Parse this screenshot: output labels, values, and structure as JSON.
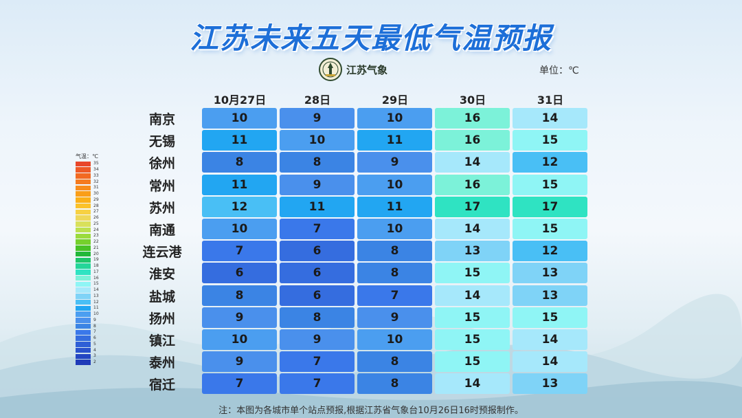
{
  "title": "江苏未来五天最低气温预报",
  "logo_text": "江苏气象",
  "unit_label": "单位：℃",
  "note": "注：本图为各城市单个站点预报,根据江苏省气象台10月26日16时预报制作。",
  "legend": {
    "title": "气温：℃",
    "levels": [
      {
        "label": "35",
        "color": "#e8472a"
      },
      {
        "label": "34",
        "color": "#ee5a26"
      },
      {
        "label": "33",
        "color": "#f26a22"
      },
      {
        "label": "32",
        "color": "#f57b1f"
      },
      {
        "label": "31",
        "color": "#f88d1c"
      },
      {
        "label": "30",
        "color": "#fa9e18"
      },
      {
        "label": "29",
        "color": "#fbb018"
      },
      {
        "label": "28",
        "color": "#fbc22a"
      },
      {
        "label": "27",
        "color": "#f7d143"
      },
      {
        "label": "26",
        "color": "#eed85a"
      },
      {
        "label": "25",
        "color": "#d9e05b"
      },
      {
        "label": "24",
        "color": "#bde050"
      },
      {
        "label": "23",
        "color": "#9bdb3e"
      },
      {
        "label": "22",
        "color": "#75d02c"
      },
      {
        "label": "21",
        "color": "#47c226"
      },
      {
        "label": "20",
        "color": "#22b83a"
      },
      {
        "label": "19",
        "color": "#1ec66a"
      },
      {
        "label": "18",
        "color": "#24d699"
      },
      {
        "label": "17",
        "color": "#2fe3c2"
      },
      {
        "label": "16",
        "color": "#7cf2d9"
      },
      {
        "label": "15",
        "color": "#8ff5f5"
      },
      {
        "label": "14",
        "color": "#a6e8fb"
      },
      {
        "label": "13",
        "color": "#7fd3f7"
      },
      {
        "label": "12",
        "color": "#49bff5"
      },
      {
        "label": "11",
        "color": "#22a6f2"
      },
      {
        "label": "10",
        "color": "#4b9ef0"
      },
      {
        "label": "9",
        "color": "#4a90ec"
      },
      {
        "label": "8",
        "color": "#3b84e4"
      },
      {
        "label": "7",
        "color": "#3a78ea"
      },
      {
        "label": "6",
        "color": "#356ddf"
      },
      {
        "label": "5",
        "color": "#2f5fd6"
      },
      {
        "label": "4",
        "color": "#2a52cc"
      },
      {
        "label": "3",
        "color": "#2446c2"
      },
      {
        "label": "2",
        "color": "#1e3ab8"
      }
    ]
  },
  "chart_data": {
    "type": "table",
    "title": "江苏未来五天最低气温预报",
    "unit": "℃",
    "columns": [
      "10月27日",
      "28日",
      "29日",
      "30日",
      "31日"
    ],
    "rows": [
      {
        "city": "南京",
        "values": [
          10,
          9,
          10,
          16,
          14
        ]
      },
      {
        "city": "无锡",
        "values": [
          11,
          10,
          11,
          16,
          15
        ]
      },
      {
        "city": "徐州",
        "values": [
          8,
          8,
          9,
          14,
          12
        ]
      },
      {
        "city": "常州",
        "values": [
          11,
          9,
          10,
          16,
          15
        ]
      },
      {
        "city": "苏州",
        "values": [
          12,
          11,
          11,
          17,
          17
        ]
      },
      {
        "city": "南通",
        "values": [
          10,
          7,
          10,
          14,
          15
        ]
      },
      {
        "city": "连云港",
        "values": [
          7,
          6,
          8,
          13,
          12
        ]
      },
      {
        "city": "淮安",
        "values": [
          6,
          6,
          8,
          15,
          13
        ]
      },
      {
        "city": "盐城",
        "values": [
          8,
          6,
          7,
          14,
          13
        ]
      },
      {
        "city": "扬州",
        "values": [
          9,
          8,
          9,
          15,
          15
        ]
      },
      {
        "city": "镇江",
        "values": [
          10,
          9,
          10,
          15,
          14
        ]
      },
      {
        "city": "泰州",
        "values": [
          9,
          7,
          8,
          15,
          14
        ]
      },
      {
        "city": "宿迁",
        "values": [
          7,
          7,
          8,
          14,
          13
        ]
      }
    ]
  }
}
